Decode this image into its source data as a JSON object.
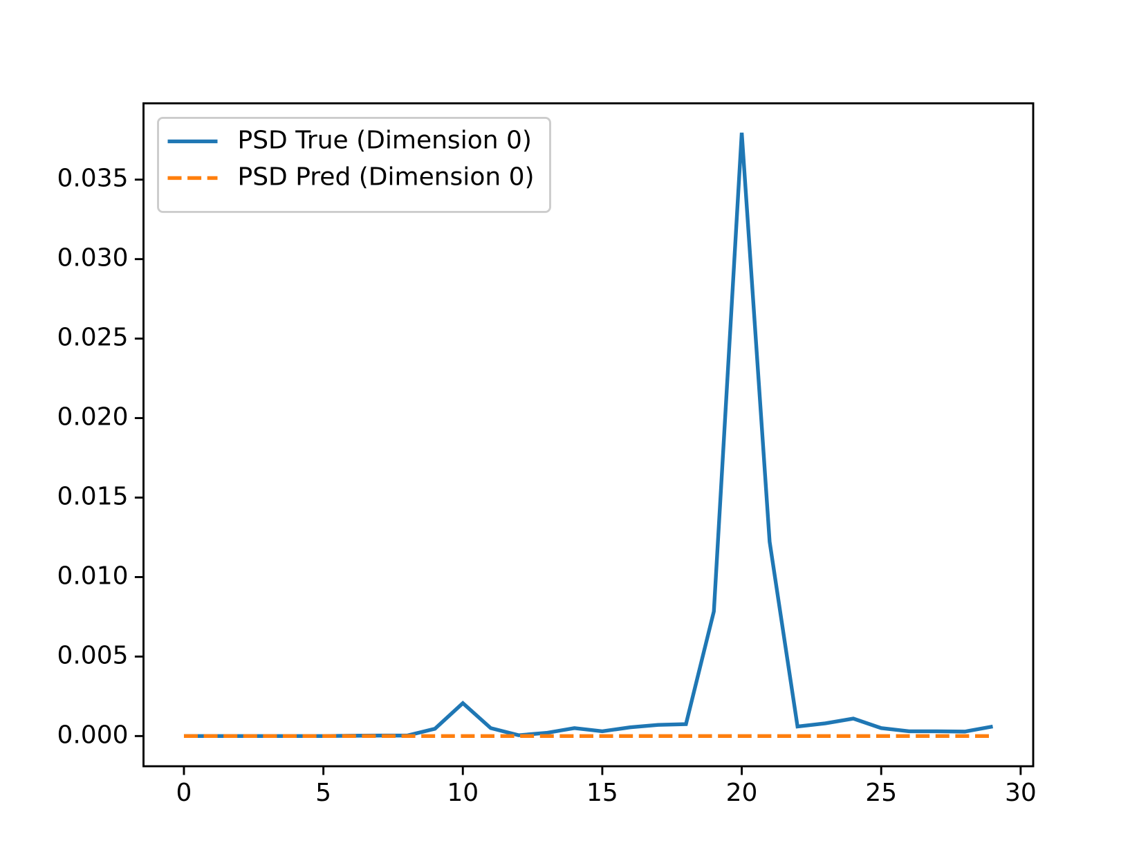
{
  "chart_data": {
    "type": "line",
    "x": [
      0,
      1,
      2,
      3,
      4,
      5,
      6,
      7,
      8,
      9,
      10,
      11,
      12,
      13,
      14,
      15,
      16,
      17,
      18,
      19,
      20,
      21,
      22,
      23,
      24,
      25,
      26,
      27,
      28,
      29
    ],
    "series": [
      {
        "name": "PSD True (Dimension 0)",
        "color": "#1f77b4",
        "dash": "solid",
        "values": [
          0,
          0,
          0,
          0,
          0,
          0,
          2e-05,
          3e-05,
          3e-05,
          0.00046,
          0.00207,
          0.0005,
          5e-05,
          0.0002,
          0.0005,
          0.0003,
          0.00055,
          0.0007,
          0.00075,
          0.00784,
          0.03795,
          0.01222,
          0.0006,
          0.0008,
          0.0011,
          0.0005,
          0.0003,
          0.0003,
          0.00028,
          0.0006
        ]
      },
      {
        "name": "PSD Pred (Dimension 0)",
        "color": "#ff7f0e",
        "dash": "dashed",
        "values": [
          0,
          0,
          0,
          0,
          0,
          0,
          0,
          0,
          0,
          0,
          0,
          0,
          0,
          0,
          0,
          0,
          0,
          0,
          0,
          0,
          0,
          0,
          0,
          0,
          0,
          0,
          0,
          0,
          0,
          0
        ]
      }
    ],
    "xlim": [
      -1.45,
      30.45
    ],
    "xticks": [
      0,
      5,
      10,
      15,
      20,
      25,
      30
    ],
    "ylim": [
      -0.0019,
      0.0398
    ],
    "yticks": [
      {
        "value": 0,
        "label": "0.000"
      },
      {
        "value": 0.005,
        "label": "0.005"
      },
      {
        "value": 0.01,
        "label": "0.010"
      },
      {
        "value": 0.015,
        "label": "0.015"
      },
      {
        "value": 0.02,
        "label": "0.020"
      },
      {
        "value": 0.025,
        "label": "0.025"
      },
      {
        "value": 0.03,
        "label": "0.030"
      },
      {
        "value": 0.035,
        "label": "0.035"
      }
    ],
    "legend": "upper left"
  }
}
